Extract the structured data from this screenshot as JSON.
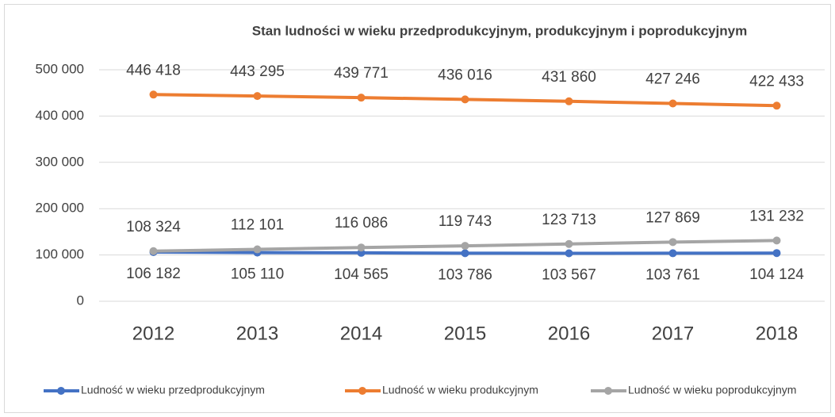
{
  "chart_data": {
    "type": "line",
    "title": "Stan ludności  w wieku przedprodukcyjnym,  produkcyjnym  i poprodukcyjnym",
    "categories": [
      "2012",
      "2013",
      "2014",
      "2015",
      "2016",
      "2017",
      "2018"
    ],
    "series": [
      {
        "name": "Ludność w wieku przedprodukcyjnym",
        "color": "#4472c4",
        "values": [
          106182,
          105110,
          104565,
          103786,
          103567,
          103761,
          104124
        ],
        "value_labels": [
          "106 182",
          "105 110",
          "104 565",
          "103 786",
          "103 567",
          "103 761",
          "104 124"
        ]
      },
      {
        "name": "Ludność w wieku produkcyjnym",
        "color": "#ed7d31",
        "values": [
          446418,
          443295,
          439771,
          436016,
          431860,
          427246,
          422433
        ],
        "value_labels": [
          "446 418",
          "443 295",
          "439 771",
          "436 016",
          "431 860",
          "427 246",
          "422 433"
        ]
      },
      {
        "name": "Ludność w wieku poprodukcyjnym",
        "color": "#a5a5a5",
        "values": [
          108324,
          112101,
          116086,
          119743,
          123713,
          127869,
          131232
        ],
        "value_labels": [
          "108 324",
          "112 101",
          "116 086",
          "119 743",
          "123 713",
          "127 869",
          "131 232"
        ]
      }
    ],
    "ylim": [
      0,
      500000
    ],
    "yticks": [
      0,
      {
        "value": 100000,
        "label": "100 000"
      },
      {
        "value": 200000,
        "label": "200 000"
      },
      {
        "value": 300000,
        "label": "300 000"
      },
      {
        "value": 400000,
        "label": "400 000"
      },
      {
        "value": 500000,
        "label": "500 000"
      }
    ],
    "grid": true,
    "legend": "bottom"
  }
}
